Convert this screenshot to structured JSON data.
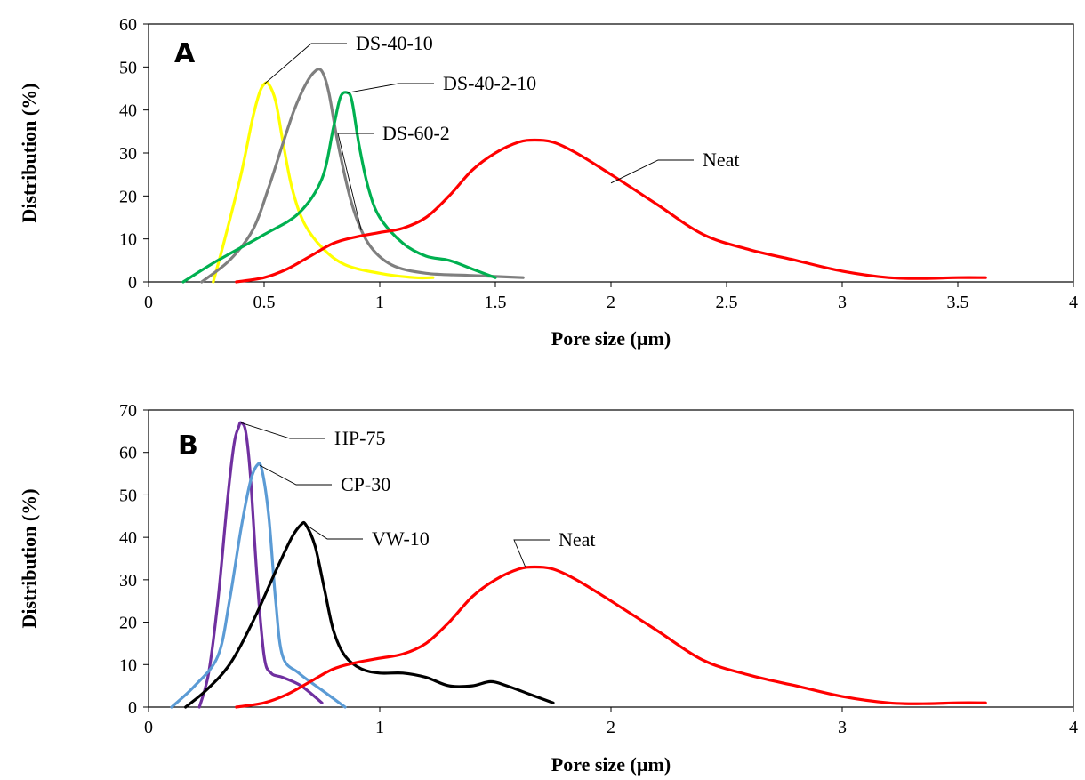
{
  "chart_data": [
    {
      "type": "line",
      "panel_label": "A",
      "xlabel": "Pore size (µm)",
      "ylabel": "Distribution (%)",
      "xlim": [
        0,
        4
      ],
      "ylim": [
        0,
        60
      ],
      "xticks": [
        0,
        0.5,
        1,
        1.5,
        2,
        2.5,
        3,
        3.5,
        4
      ],
      "xtick_labels": [
        "0",
        "0.5",
        "1",
        "1.5",
        "2",
        "2.5",
        "3",
        "3.5",
        "4"
      ],
      "yticks": [
        0,
        10,
        20,
        30,
        40,
        50,
        60
      ],
      "ytick_labels": [
        "0",
        "10",
        "20",
        "30",
        "40",
        "50",
        "60"
      ],
      "grid": false,
      "legend": "none",
      "series": [
        {
          "name": "DS-40-10",
          "color": "#ffff00",
          "x": [
            0.28,
            0.33,
            0.4,
            0.45,
            0.48,
            0.5,
            0.52,
            0.55,
            0.58,
            0.62,
            0.67,
            0.75,
            0.85,
            1.0,
            1.15,
            1.23
          ],
          "y": [
            0,
            10,
            25,
            38,
            44,
            46,
            46,
            42,
            33,
            22,
            14,
            8,
            4,
            2,
            1,
            1
          ]
        },
        {
          "name": "DS-60-2",
          "color": "#7f7f7f",
          "x": [
            0.23,
            0.35,
            0.45,
            0.52,
            0.58,
            0.63,
            0.68,
            0.72,
            0.75,
            0.78,
            0.82,
            0.88,
            0.95,
            1.05,
            1.2,
            1.4,
            1.62
          ],
          "y": [
            0,
            5,
            12,
            22,
            32,
            40,
            46,
            49,
            49,
            44,
            32,
            18,
            9,
            4,
            2,
            1.5,
            1
          ]
        },
        {
          "name": "DS-40-2-10",
          "color": "#00b050",
          "x": [
            0.15,
            0.3,
            0.5,
            0.65,
            0.75,
            0.8,
            0.83,
            0.86,
            0.88,
            0.91,
            0.95,
            1.0,
            1.1,
            1.2,
            1.3,
            1.4,
            1.5
          ],
          "y": [
            0,
            5,
            11,
            16,
            24,
            36,
            43,
            44,
            42,
            32,
            22,
            15,
            9,
            6,
            5,
            3,
            1
          ]
        },
        {
          "name": "Neat",
          "color": "#ff0000",
          "x": [
            0.38,
            0.5,
            0.6,
            0.7,
            0.8,
            0.9,
            1.0,
            1.1,
            1.2,
            1.3,
            1.4,
            1.5,
            1.6,
            1.67,
            1.75,
            1.85,
            2.0,
            2.2,
            2.4,
            2.6,
            2.8,
            3.0,
            3.2,
            3.35,
            3.5,
            3.62
          ],
          "y": [
            0,
            1,
            3,
            6,
            9,
            10.5,
            11.5,
            12.5,
            15,
            20,
            26,
            30,
            32.5,
            33,
            32.5,
            30,
            25,
            18,
            11,
            7.5,
            5,
            2.5,
            1,
            0.8,
            1,
            1
          ]
        }
      ],
      "annotations": [
        {
          "text": "DS-40-10",
          "series": "DS-40-10",
          "point": [
            0.5,
            46
          ]
        },
        {
          "text": "DS-40-2-10",
          "series": "DS-40-2-10",
          "point": [
            0.86,
            44
          ]
        },
        {
          "text": "DS-60-2",
          "series": "DS-60-2",
          "point": [
            0.92,
            12
          ]
        },
        {
          "text": "Neat",
          "series": "Neat",
          "point": [
            2.0,
            23
          ]
        }
      ]
    },
    {
      "type": "line",
      "panel_label": "B",
      "xlabel": "Pore size (µm)",
      "ylabel": "Distribution (%)",
      "xlim": [
        0,
        4
      ],
      "ylim": [
        0,
        70
      ],
      "xticks": [
        0,
        1,
        2,
        3,
        4
      ],
      "xtick_labels": [
        "0",
        "1",
        "2",
        "3",
        "4"
      ],
      "yticks": [
        0,
        10,
        20,
        30,
        40,
        50,
        60,
        70
      ],
      "ytick_labels": [
        "0",
        "10",
        "20",
        "30",
        "40",
        "50",
        "60",
        "70"
      ],
      "grid": false,
      "legend": "none",
      "series": [
        {
          "name": "HP-75",
          "color": "#7030a0",
          "x": [
            0.22,
            0.26,
            0.3,
            0.34,
            0.37,
            0.39,
            0.4,
            0.42,
            0.44,
            0.47,
            0.5,
            0.53,
            0.58,
            0.66,
            0.75
          ],
          "y": [
            0,
            8,
            25,
            48,
            62,
            66,
            67,
            65,
            55,
            30,
            12,
            8,
            7,
            5,
            1
          ]
        },
        {
          "name": "CP-30",
          "color": "#5b9bd5",
          "x": [
            0.1,
            0.2,
            0.3,
            0.35,
            0.4,
            0.44,
            0.47,
            0.49,
            0.52,
            0.55,
            0.58,
            0.65,
            0.75,
            0.85
          ],
          "y": [
            0,
            5,
            12,
            25,
            42,
            53,
            57,
            56,
            45,
            25,
            12,
            8,
            4,
            0
          ]
        },
        {
          "name": "VW-10",
          "color": "#000000",
          "x": [
            0.16,
            0.25,
            0.35,
            0.45,
            0.55,
            0.62,
            0.66,
            0.68,
            0.72,
            0.76,
            0.8,
            0.85,
            0.92,
            1.0,
            1.1,
            1.2,
            1.3,
            1.4,
            1.48,
            1.55,
            1.65,
            1.75
          ],
          "y": [
            0,
            4,
            10,
            20,
            32,
            40,
            43,
            43,
            38,
            28,
            18,
            12,
            9,
            8,
            8,
            7,
            5,
            5,
            6,
            5,
            3,
            1
          ]
        },
        {
          "name": "Neat",
          "color": "#ff0000",
          "x": [
            0.38,
            0.5,
            0.6,
            0.7,
            0.8,
            0.9,
            1.0,
            1.1,
            1.2,
            1.3,
            1.4,
            1.5,
            1.6,
            1.67,
            1.75,
            1.85,
            2.0,
            2.2,
            2.4,
            2.6,
            2.8,
            3.0,
            3.2,
            3.35,
            3.5,
            3.62
          ],
          "y": [
            0,
            1,
            3,
            6,
            9,
            10.5,
            11.5,
            12.5,
            15,
            20,
            26,
            30,
            32.5,
            33,
            32.5,
            30,
            25,
            18,
            11,
            7.5,
            5,
            2.5,
            1,
            0.8,
            1,
            1
          ]
        }
      ],
      "annotations": [
        {
          "text": "HP-75",
          "series": "HP-75",
          "point": [
            0.4,
            67
          ]
        },
        {
          "text": "CP-30",
          "series": "CP-30",
          "point": [
            0.48,
            57
          ]
        },
        {
          "text": "VW-10",
          "series": "VW-10",
          "point": [
            0.68,
            43
          ]
        },
        {
          "text": "Neat",
          "series": "Neat",
          "point": [
            1.63,
            33
          ]
        }
      ]
    }
  ]
}
